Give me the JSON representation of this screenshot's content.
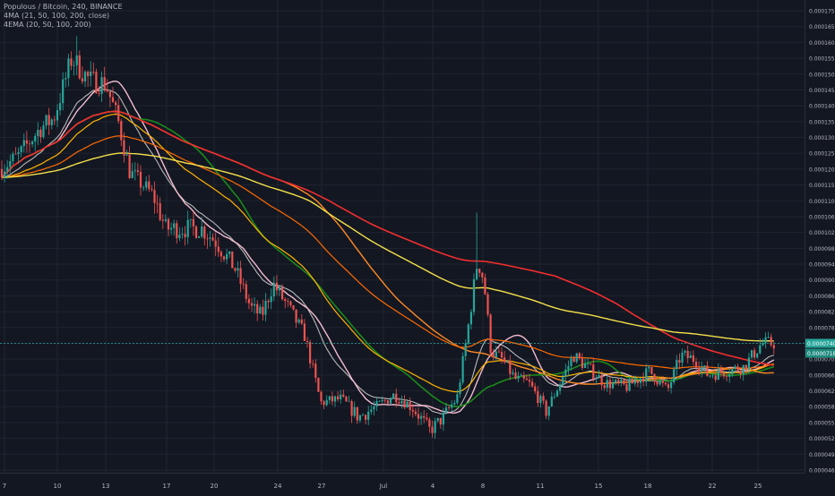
{
  "legend": {
    "symbol_line": "Populous / Bitcoin, 240, BINANCE",
    "ma_line": "4MA (21, 50, 100, 200, close)",
    "ema_line": "4EMA (20, 50, 100, 200)"
  },
  "price_badge": {
    "last": "0.0000740",
    "second": "0.0000718"
  },
  "chart_data": {
    "type": "candlestick",
    "title": "Populous / Bitcoin, 240, BINANCE",
    "x_tick_labels": [
      "7",
      "10",
      "13",
      "17",
      "20",
      "24",
      "27",
      "Jul",
      "4",
      "8",
      "11",
      "15",
      "18",
      "22",
      "25"
    ],
    "y_tick_labels": [
      "0.0000462",
      "0.0000490",
      "0.0000520",
      "0.0000550",
      "0.0000580",
      "0.0000620",
      "0.0000660",
      "0.0000700",
      "0.0000740",
      "0.0000780",
      "0.0000820",
      "0.0000860",
      "0.0000900",
      "0.0000940",
      "0.0000980",
      "0.0001020",
      "0.0001060",
      "0.0001100",
      "0.0001150",
      "0.0001200",
      "0.0001250",
      "0.0001300",
      "0.0001350",
      "0.0001400",
      "0.0001450",
      "0.0001500",
      "0.0001550",
      "0.0001600",
      "0.0001650",
      "0.0001750"
    ],
    "last_price": 7.4e-05,
    "colors": {
      "up": "#26a69a",
      "down": "#ef5350",
      "ma_series": [
        "#f5bcd0",
        "#1b8a1b",
        "#ff8a24",
        "#f22e2e"
      ],
      "ema_series": [
        "#b9b9b9",
        "#ffb300",
        "#ff6a00",
        "#f5e04a"
      ],
      "background": "#131722",
      "grid": "#1f2430",
      "last_price_line": "#26a69a"
    },
    "grid": true,
    "legend_position": "top-left"
  }
}
